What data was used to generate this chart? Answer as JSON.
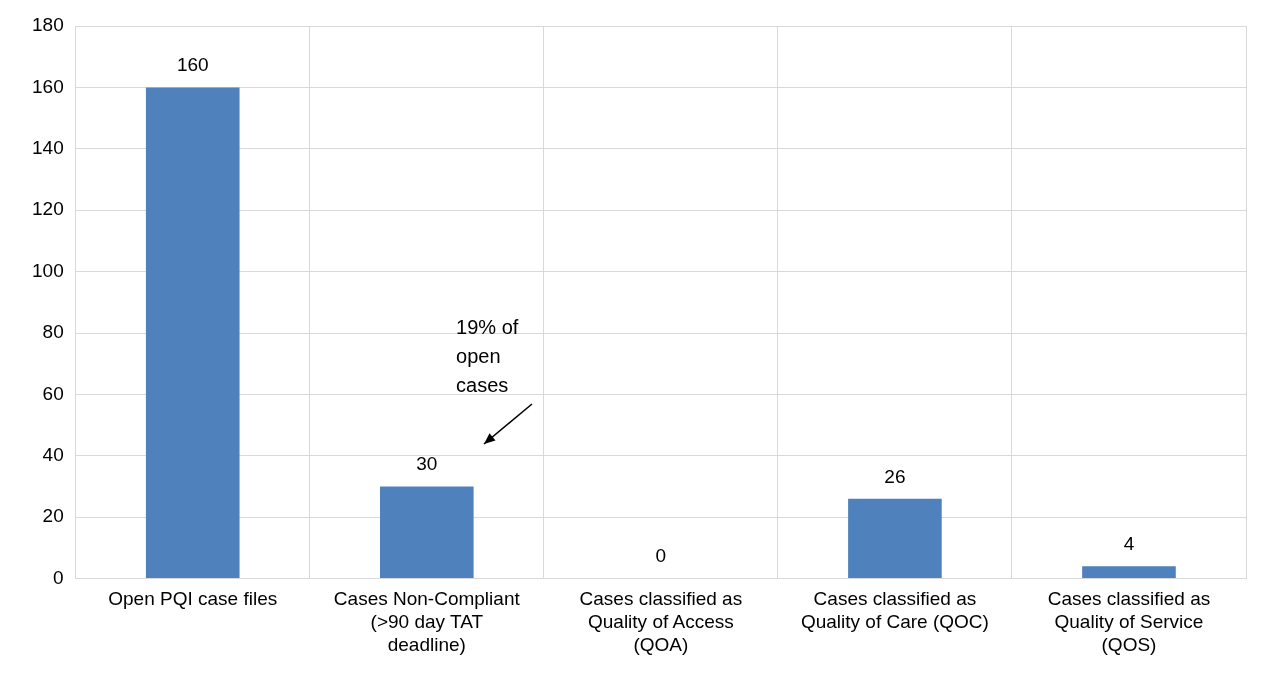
{
  "chart_data": {
    "type": "bar",
    "categories": [
      "Open PQI case files",
      "Cases Non-Compliant (>90 day TAT deadline)",
      "Cases classified as Quality of Access (QOA)",
      "Cases classified as Quality of Care (QOC)",
      "Cases classified as Quality of Service (QOS)"
    ],
    "values": [
      160,
      30,
      0,
      26,
      4
    ],
    "color": "#4f81bd",
    "ylim": [
      0,
      180
    ],
    "yticks": [
      0,
      20,
      40,
      60,
      80,
      100,
      120,
      140,
      160,
      180
    ],
    "grid": true,
    "legend": false,
    "data_labels": true,
    "annotations": [
      "19% of open cases"
    ]
  }
}
